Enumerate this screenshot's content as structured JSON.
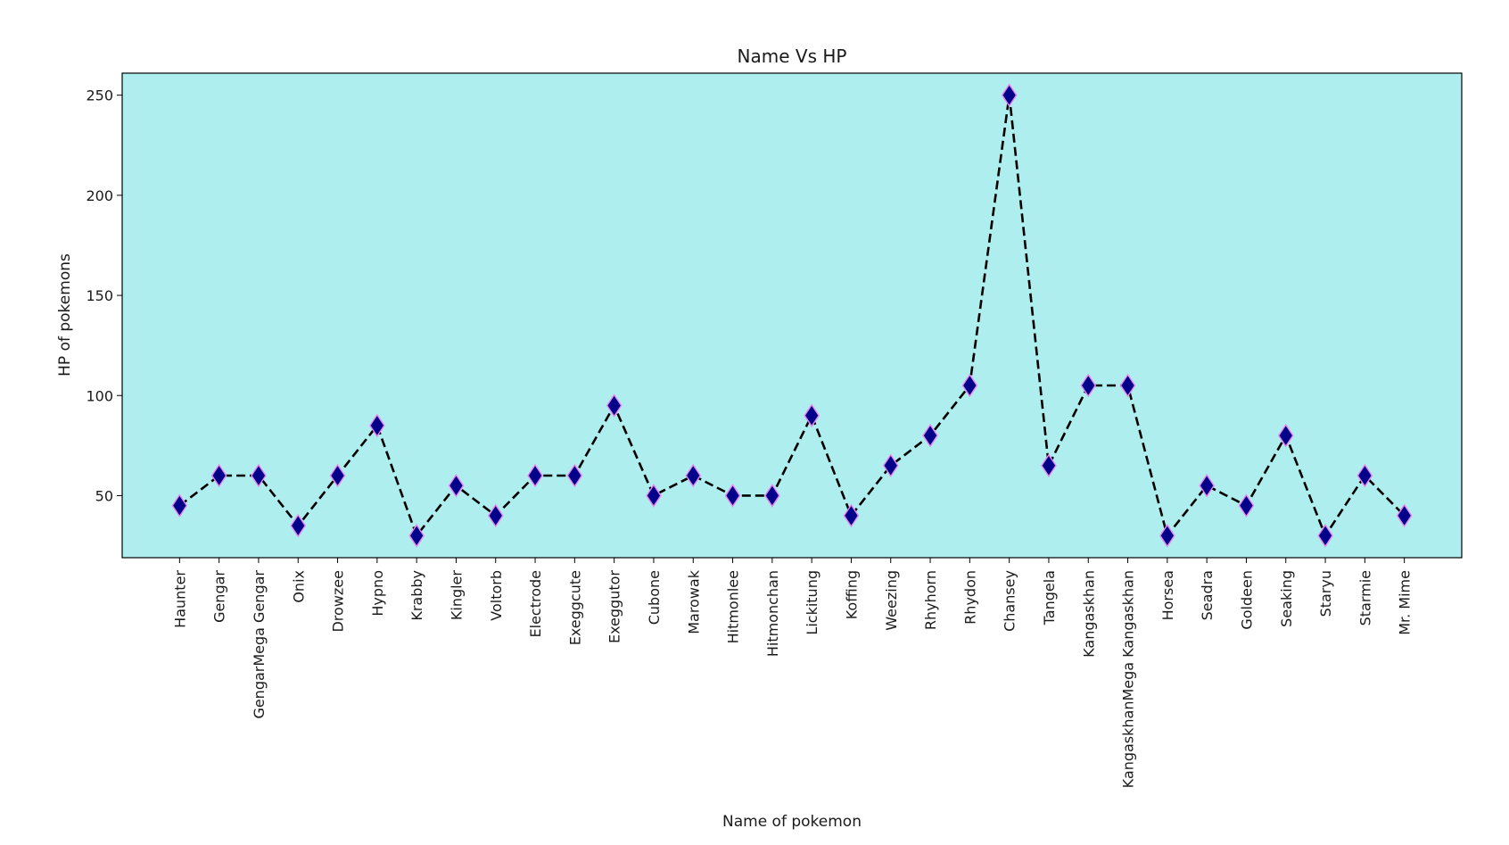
{
  "chart_data": {
    "type": "line",
    "title": "Name Vs HP",
    "xlabel": "Name of pokemon",
    "ylabel": "HP of pokemons",
    "categories": [
      "Haunter",
      "Gengar",
      "GengarMega Gengar",
      "Onix",
      "Drowzee",
      "Hypno",
      "Krabby",
      "Kingler",
      "Voltorb",
      "Electrode",
      "Exeggcute",
      "Exeggutor",
      "Cubone",
      "Marowak",
      "Hitmonlee",
      "Hitmonchan",
      "Lickitung",
      "Koffing",
      "Weezing",
      "Rhyhorn",
      "Rhydon",
      "Chansey",
      "Tangela",
      "Kangaskhan",
      "KangaskhanMega Kangaskhan",
      "Horsea",
      "Seadra",
      "Goldeen",
      "Seaking",
      "Staryu",
      "Starmie",
      "Mr. Mime"
    ],
    "series": [
      {
        "values": [
          45,
          60,
          60,
          35,
          60,
          85,
          30,
          55,
          40,
          60,
          60,
          95,
          50,
          60,
          50,
          50,
          90,
          40,
          65,
          80,
          105,
          250,
          65,
          105,
          105,
          30,
          55,
          45,
          80,
          30,
          60,
          40
        ]
      }
    ],
    "yticks": [
      50,
      100,
      150,
      200,
      250
    ],
    "ylim": [
      19,
      261
    ],
    "grid": false,
    "line_style": "dashed",
    "marker": "diamond",
    "colors": {
      "plot_background": "#afeeee",
      "line": "#000000",
      "marker_fill": "#00008b",
      "marker_edge": "#ee82ee"
    }
  }
}
